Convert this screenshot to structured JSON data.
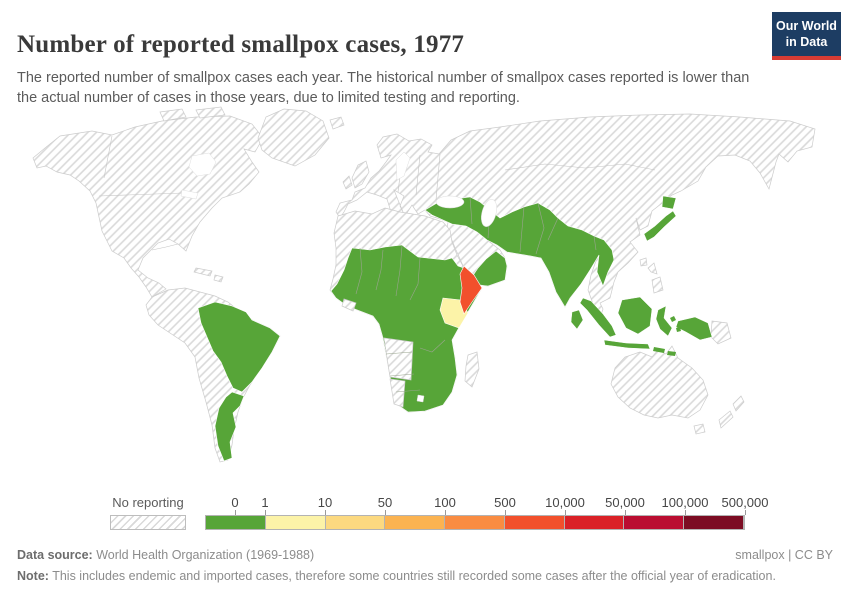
{
  "header": {
    "title": "Number of reported smallpox cases, 1977",
    "subtitle": "The reported number of smallpox cases each year. The historical number of smallpox cases reported is lower than the actual number of cases in those years, due to limited testing and reporting.",
    "logo": {
      "line1": "Our World",
      "line2": "in Data",
      "bg": "#1d3d63",
      "accent": "#d73c34"
    }
  },
  "palette": {
    "green": "#57a538",
    "pale_yellow": "#fcf3a8",
    "red_orange": "#f2502c",
    "hatch_line": "#d9d9d9",
    "border": "#cccccc"
  },
  "legend": {
    "no_reporting_label": "No reporting",
    "tick_labels": [
      "0",
      "1",
      "10",
      "50",
      "100",
      "500",
      "10,000",
      "50,000",
      "100,000",
      "500,000"
    ],
    "segment_colors": [
      "#57a538",
      "#fcf3a8",
      "#fcd980",
      "#fbb351",
      "#f98c42",
      "#f2502c",
      "#da2127",
      "#ba0d31",
      "#7c0c23"
    ]
  },
  "footer": {
    "data_source_label": "Data source:",
    "data_source_value": " World Health Organization (1969-1988)",
    "license_text": "smallpox | CC BY",
    "note_label": "Note:",
    "note_text": " This includes endemic and imported cases, therefore some countries still recorded some cases after the official year of eradication."
  },
  "chart_data": {
    "type": "choropleth_map",
    "title": "Number of reported smallpox cases, 1977",
    "year": 1977,
    "unit": "reported smallpox cases",
    "legend_bins": [
      {
        "range": "0",
        "color": "#57a538"
      },
      {
        "range": "1-10",
        "color": "#fcf3a8"
      },
      {
        "range": "10-50",
        "color": "#fcd980"
      },
      {
        "range": "50-100",
        "color": "#fbb351"
      },
      {
        "range": "100-500",
        "color": "#f98c42"
      },
      {
        "range": "500-10,000",
        "color": "#f2502c"
      },
      {
        "range": "10,000-50,000",
        "color": "#da2127"
      },
      {
        "range": "50,000-100,000",
        "color": "#ba0d31"
      },
      {
        "range": "100,000-500,000",
        "color": "#7c0c23"
      },
      {
        "range": "No reporting",
        "color": "hatched-gray"
      }
    ],
    "values": {
      "0": [
        "Brazil",
        "Argentina",
        "Uruguay",
        "most of sub-Saharan Africa",
        "Ethiopia",
        "Turkey",
        "Syria",
        "Iraq",
        "Iran",
        "Afghanistan",
        "Pakistan",
        "India",
        "Nepal",
        "Sri Lanka",
        "Bangladesh",
        "Myanmar",
        "Yemen",
        "Oman",
        "Japan",
        "Indonesia"
      ],
      "1-10": [
        "Kenya"
      ],
      "500-10,000": [
        "Somalia"
      ],
      "no_reporting": [
        "North America",
        "Greenland",
        "western South America",
        "Europe",
        "USSR",
        "China",
        "Mongolia",
        "Southeast Asia",
        "Philippines",
        "Korea",
        "Saudi Arabia",
        "North Africa",
        "Mauritania",
        "Angola",
        "Namibia",
        "Madagascar",
        "Australia",
        "New Zealand",
        "Papua New Guinea"
      ]
    }
  }
}
